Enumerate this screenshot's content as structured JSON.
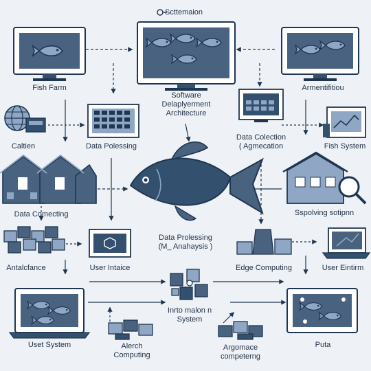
{
  "header": {
    "title": "Scttemaion"
  },
  "nodes": {
    "fish_farm": "Fish Farm",
    "software_arch_1": "Software",
    "software_arch_2": "Delaplyerment",
    "software_arch_3": "Architecture",
    "arment": "Armentifitiou",
    "caltien": "Caltien",
    "data_polessing": "Data Polessing",
    "data_coleection_1": "Data Colection",
    "data_coleection_2": "( Agmecation",
    "fish_system": "Fish System",
    "data_comecting": "Data Comecting",
    "spsolving": "Sspolving sotipnn",
    "antalcfance": "Antalcfance",
    "user_intaice": "User Intaice",
    "data_prolessing_1": "Data Prolessing",
    "data_prolessing_2": "(M_ Anahaysis )",
    "edge_computing": "Edge Computing",
    "user_eintirm": "User Eintirm",
    "inrto_1": "Inrto malon n",
    "inrto_2": "System",
    "uset_system": "Uset System",
    "alerch_1": "Alerch",
    "alerch_2": "Computing",
    "argomace_1": "Argomace",
    "argomace_2": "competerng",
    "puta": "Puta"
  },
  "colors": {
    "primary": "#34506f",
    "dark": "#1f3550",
    "light": "#8fa7c4",
    "screen": "#48627f",
    "bg": "#eef2f6"
  }
}
